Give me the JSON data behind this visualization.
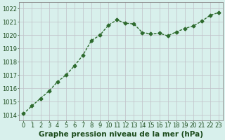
{
  "x": [
    0,
    1,
    2,
    3,
    4,
    5,
    6,
    7,
    8,
    9,
    10,
    11,
    12,
    13,
    14,
    15,
    16,
    17,
    18,
    19,
    20,
    21,
    22,
    23
  ],
  "y": [
    1014.1,
    1014.7,
    1015.25,
    1015.8,
    1016.5,
    1017.0,
    1017.7,
    1018.5,
    1019.6,
    1020.0,
    1020.75,
    1021.15,
    1020.9,
    1020.85,
    1020.2,
    1020.1,
    1020.15,
    1019.95,
    1020.25,
    1020.5,
    1020.7,
    1021.05,
    1021.5,
    1021.7
  ],
  "line_color": "#2d6a2d",
  "marker": "D",
  "marker_size": 2.5,
  "linewidth": 1.0,
  "bg_color": "#d8f0ec",
  "grid_color": "#c0c0c8",
  "xlabel": "Graphe pression niveau de la mer (hPa)",
  "xlabel_fontsize": 7.5,
  "xlabel_color": "#1a4a1a",
  "tick_color": "#1a4a1a",
  "tick_fontsize": 6.0,
  "ytick_vals": [
    1014,
    1015,
    1016,
    1017,
    1018,
    1019,
    1020,
    1021,
    1022
  ],
  "ytick_labels": [
    "1014",
    "1015",
    "1016",
    "1017",
    "1018",
    "1019",
    "1020",
    "1021",
    "1022"
  ],
  "ylim": [
    1013.6,
    1022.5
  ],
  "xlim": [
    -0.5,
    23.5
  ],
  "xtick_labels": [
    "0",
    "1",
    "2",
    "3",
    "4",
    "5",
    "6",
    "7",
    "8",
    "9",
    "10",
    "11",
    "12",
    "13",
    "14",
    "15",
    "16",
    "17",
    "18",
    "19",
    "20",
    "21",
    "22",
    "23"
  ]
}
